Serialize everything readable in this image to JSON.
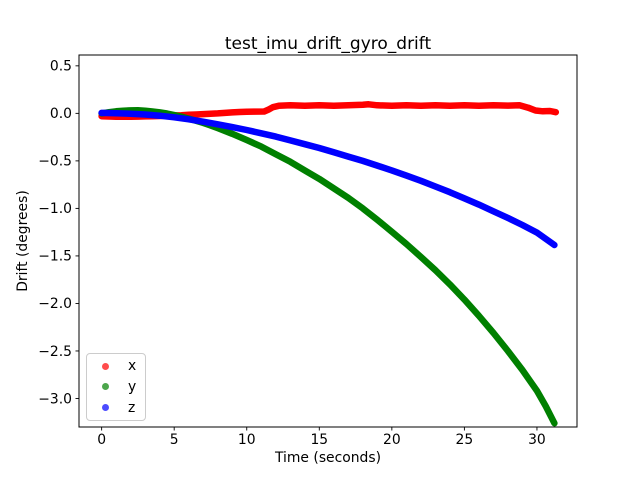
{
  "figure": {
    "title": "test_imu_drift_gyro_drift",
    "xlabel": "Time (seconds)",
    "ylabel": "Drift (degrees)",
    "background_color": "#ffffff"
  },
  "chart_data": {
    "type": "scatter",
    "title": "test_imu_drift_gyro_drift",
    "xlabel": "Time (seconds)",
    "ylabel": "Drift (degrees)",
    "xlim": [
      -1.56,
      32.76
    ],
    "ylim": [
      -3.3,
      0.614
    ],
    "x_ticks": [
      0,
      5,
      10,
      15,
      20,
      25,
      30
    ],
    "x_tick_labels": [
      "0",
      "5",
      "10",
      "15",
      "20",
      "25",
      "30"
    ],
    "y_ticks": [
      0.5,
      0.0,
      -0.5,
      -1.0,
      -1.5,
      -2.0,
      -2.5,
      -3.0
    ],
    "y_tick_labels": [
      "0.5",
      "0.0",
      "−0.5",
      "−1.0",
      "−1.5",
      "−2.0",
      "−2.5",
      "−3.0"
    ],
    "grid": false,
    "legend_position": "lower left",
    "marker_style": "dot",
    "axis_color": "#000000",
    "series": [
      {
        "name": "x",
        "color": "#ff0000",
        "points": [
          [
            0,
            -0.03
          ],
          [
            0.5,
            -0.033
          ],
          [
            1,
            -0.035
          ],
          [
            1.5,
            -0.036
          ],
          [
            2,
            -0.035
          ],
          [
            2.5,
            -0.034
          ],
          [
            3,
            -0.032
          ],
          [
            3.5,
            -0.03
          ],
          [
            4,
            -0.028
          ],
          [
            4.5,
            -0.025
          ],
          [
            5,
            -0.022
          ],
          [
            5.5,
            -0.019
          ],
          [
            6,
            -0.015
          ],
          [
            6.5,
            -0.012
          ],
          [
            7,
            -0.008
          ],
          [
            7.5,
            -0.004
          ],
          [
            8,
            0.0
          ],
          [
            8.5,
            0.005
          ],
          [
            9,
            0.01
          ],
          [
            9.5,
            0.014
          ],
          [
            10,
            0.017
          ],
          [
            10.5,
            0.019
          ],
          [
            11.2,
            0.02
          ],
          [
            11.5,
            0.04
          ],
          [
            11.8,
            0.065
          ],
          [
            12.2,
            0.08
          ],
          [
            13,
            0.085
          ],
          [
            14,
            0.08
          ],
          [
            15,
            0.085
          ],
          [
            16,
            0.08
          ],
          [
            17,
            0.085
          ],
          [
            18,
            0.09
          ],
          [
            18.4,
            0.095
          ],
          [
            19,
            0.085
          ],
          [
            20,
            0.08
          ],
          [
            21,
            0.085
          ],
          [
            22,
            0.08
          ],
          [
            23,
            0.085
          ],
          [
            24,
            0.08
          ],
          [
            25,
            0.085
          ],
          [
            26,
            0.08
          ],
          [
            27,
            0.085
          ],
          [
            28,
            0.082
          ],
          [
            28.8,
            0.085
          ],
          [
            29.4,
            0.06
          ],
          [
            29.9,
            0.03
          ],
          [
            30.4,
            0.022
          ],
          [
            30.9,
            0.025
          ],
          [
            31.3,
            0.012
          ]
        ]
      },
      {
        "name": "y",
        "color": "#008000",
        "points": [
          [
            0,
            0.0
          ],
          [
            0.5,
            0.012
          ],
          [
            1,
            0.022
          ],
          [
            1.5,
            0.028
          ],
          [
            2,
            0.031
          ],
          [
            2.5,
            0.032
          ],
          [
            3,
            0.028
          ],
          [
            3.5,
            0.02
          ],
          [
            4,
            0.01
          ],
          [
            4.5,
            -0.002
          ],
          [
            5,
            -0.018
          ],
          [
            5.5,
            -0.035
          ],
          [
            6,
            -0.055
          ],
          [
            6.5,
            -0.077
          ],
          [
            7,
            -0.1
          ],
          [
            7.5,
            -0.127
          ],
          [
            8,
            -0.155
          ],
          [
            9,
            -0.215
          ],
          [
            10,
            -0.28
          ],
          [
            11,
            -0.35
          ],
          [
            12,
            -0.43
          ],
          [
            13,
            -0.51
          ],
          [
            14,
            -0.6
          ],
          [
            15,
            -0.69
          ],
          [
            16,
            -0.79
          ],
          [
            17,
            -0.89
          ],
          [
            18,
            -1.0
          ],
          [
            19,
            -1.12
          ],
          [
            20,
            -1.245
          ],
          [
            21,
            -1.375
          ],
          [
            22,
            -1.51
          ],
          [
            23,
            -1.65
          ],
          [
            24,
            -1.8
          ],
          [
            25,
            -1.96
          ],
          [
            26,
            -2.13
          ],
          [
            27,
            -2.31
          ],
          [
            28,
            -2.5
          ],
          [
            29,
            -2.7
          ],
          [
            30,
            -2.92
          ],
          [
            30.6,
            -3.08
          ],
          [
            31.2,
            -3.26
          ]
        ]
      },
      {
        "name": "z",
        "color": "#0000ff",
        "points": [
          [
            0,
            0.005
          ],
          [
            1,
            0.002
          ],
          [
            2,
            -0.004
          ],
          [
            3,
            -0.012
          ],
          [
            4,
            -0.025
          ],
          [
            5,
            -0.042
          ],
          [
            6,
            -0.063
          ],
          [
            7,
            -0.088
          ],
          [
            8,
            -0.115
          ],
          [
            9,
            -0.145
          ],
          [
            10,
            -0.175
          ],
          [
            11,
            -0.21
          ],
          [
            12,
            -0.245
          ],
          [
            13,
            -0.285
          ],
          [
            14,
            -0.325
          ],
          [
            15,
            -0.365
          ],
          [
            16,
            -0.41
          ],
          [
            17,
            -0.455
          ],
          [
            18,
            -0.5
          ],
          [
            19,
            -0.55
          ],
          [
            20,
            -0.6
          ],
          [
            21,
            -0.655
          ],
          [
            22,
            -0.71
          ],
          [
            23,
            -0.77
          ],
          [
            24,
            -0.83
          ],
          [
            25,
            -0.895
          ],
          [
            26,
            -0.96
          ],
          [
            27,
            -1.03
          ],
          [
            28,
            -1.1
          ],
          [
            29,
            -1.175
          ],
          [
            30,
            -1.255
          ],
          [
            31.2,
            -1.385
          ]
        ]
      }
    ]
  },
  "legend": {
    "dot_opacity": 0.7
  }
}
